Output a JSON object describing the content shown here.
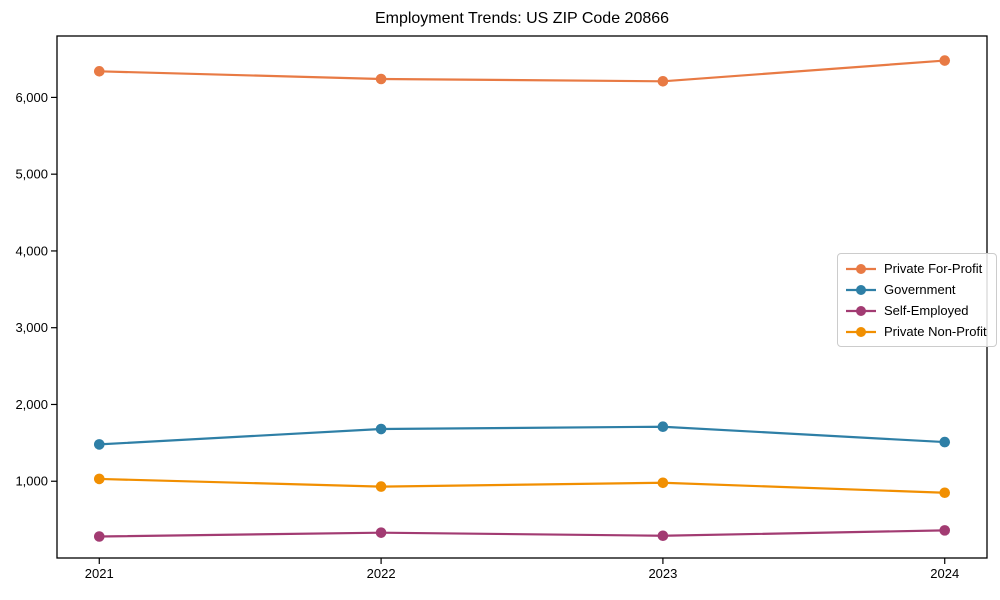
{
  "chart_data": {
    "type": "line",
    "title": "Employment Trends: US ZIP Code 20866",
    "xlabel": "",
    "ylabel": "",
    "x": [
      2021,
      2022,
      2023,
      2024
    ],
    "xtick_labels": [
      "2021",
      "2022",
      "2023",
      "2024"
    ],
    "series": [
      {
        "name": "Private For-Profit",
        "color": "#e87a44",
        "values": [
          6340,
          6240,
          6210,
          6480
        ]
      },
      {
        "name": "Government",
        "color": "#2e7fa6",
        "values": [
          1480,
          1680,
          1710,
          1510
        ]
      },
      {
        "name": "Self-Employed",
        "color": "#a23b72",
        "values": [
          280,
          330,
          290,
          360
        ]
      },
      {
        "name": "Private Non-Profit",
        "color": "#f18f01",
        "values": [
          1030,
          930,
          980,
          850
        ]
      }
    ],
    "xlim": [
      2020.85,
      2024.15
    ],
    "ylim": [
      0,
      6800
    ],
    "yticks": [
      1000,
      2000,
      3000,
      4000,
      5000,
      6000
    ],
    "ytick_labels": [
      "1,000",
      "2,000",
      "3,000",
      "4,000",
      "5,000",
      "6,000"
    ],
    "grid": false,
    "legend_position": "center-right",
    "marker": "circle",
    "axes_color": "#000000"
  }
}
